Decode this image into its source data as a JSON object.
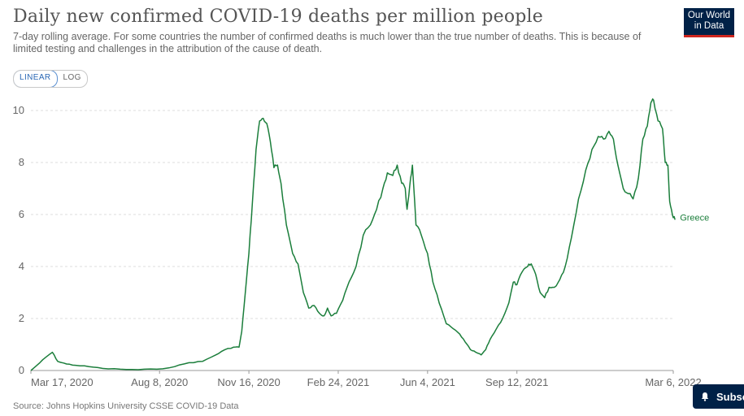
{
  "title": "Daily new confirmed COVID-19 deaths per million people",
  "subtitle": "7-day rolling average. For some countries the number of confirmed deaths is much lower than the true number of deaths. This is because of limited testing and challenges in the attribution of the cause of death.",
  "logo": {
    "line1": "Our World",
    "line2": "in Data"
  },
  "scale_toggle": {
    "linear": "LINEAR",
    "log": "LOG",
    "selected": "LINEAR"
  },
  "source": "Source: Johns Hopkins University CSSE COVID-19 Data",
  "subscribe_label": "Subsc",
  "colors": {
    "series": "#1b7e3b",
    "grid": "#dddddd",
    "logo_bg": "#002147",
    "logo_accent": "#ce261e"
  },
  "chart_data": {
    "type": "line",
    "ylim": [
      0,
      10
    ],
    "yticks": [
      0,
      2,
      4,
      6,
      8,
      10
    ],
    "xlim": [
      "2020-03-17",
      "2022-03-06"
    ],
    "xticks": [
      "Mar 17, 2020",
      "Aug 8, 2020",
      "Nov 16, 2020",
      "Feb 24, 2021",
      "Jun 4, 2021",
      "Sep 12, 2021",
      "Mar 6, 2022"
    ],
    "grid": true,
    "series": [
      {
        "name": "Greece",
        "points": [
          [
            "2020-03-17",
            0.0
          ],
          [
            "2020-03-27",
            0.3
          ],
          [
            "2020-04-06",
            0.6
          ],
          [
            "2020-04-10",
            0.7
          ],
          [
            "2020-04-16",
            0.35
          ],
          [
            "2020-04-26",
            0.25
          ],
          [
            "2020-05-06",
            0.2
          ],
          [
            "2020-05-21",
            0.15
          ],
          [
            "2020-06-05",
            0.08
          ],
          [
            "2020-06-25",
            0.05
          ],
          [
            "2020-07-15",
            0.03
          ],
          [
            "2020-08-05",
            0.05
          ],
          [
            "2020-08-25",
            0.15
          ],
          [
            "2020-09-10",
            0.3
          ],
          [
            "2020-09-25",
            0.35
          ],
          [
            "2020-10-10",
            0.6
          ],
          [
            "2020-10-20",
            0.8
          ],
          [
            "2020-10-30",
            0.9
          ],
          [
            "2020-11-05",
            0.9
          ],
          [
            "2020-11-08",
            1.5
          ],
          [
            "2020-11-12",
            3.0
          ],
          [
            "2020-11-16",
            4.5
          ],
          [
            "2020-11-20",
            6.5
          ],
          [
            "2020-11-24",
            8.5
          ],
          [
            "2020-11-28",
            9.6
          ],
          [
            "2020-12-02",
            9.7
          ],
          [
            "2020-12-06",
            9.5
          ],
          [
            "2020-12-10",
            8.8
          ],
          [
            "2020-12-14",
            7.8
          ],
          [
            "2020-12-18",
            7.9
          ],
          [
            "2020-12-22",
            7.2
          ],
          [
            "2020-12-28",
            5.6
          ],
          [
            "2021-01-04",
            4.5
          ],
          [
            "2021-01-10",
            4.1
          ],
          [
            "2021-01-16",
            3.0
          ],
          [
            "2021-01-22",
            2.4
          ],
          [
            "2021-01-28",
            2.5
          ],
          [
            "2021-02-03",
            2.2
          ],
          [
            "2021-02-08",
            2.1
          ],
          [
            "2021-02-12",
            2.4
          ],
          [
            "2021-02-16",
            2.1
          ],
          [
            "2021-02-22",
            2.2
          ],
          [
            "2021-03-01",
            2.7
          ],
          [
            "2021-03-08",
            3.4
          ],
          [
            "2021-03-16",
            4.0
          ],
          [
            "2021-03-24",
            5.2
          ],
          [
            "2021-04-01",
            5.6
          ],
          [
            "2021-04-08",
            6.2
          ],
          [
            "2021-04-15",
            7.0
          ],
          [
            "2021-04-20",
            7.6
          ],
          [
            "2021-04-26",
            7.5
          ],
          [
            "2021-05-01",
            7.9
          ],
          [
            "2021-05-06",
            7.2
          ],
          [
            "2021-05-10",
            7.0
          ],
          [
            "2021-05-12",
            6.2
          ],
          [
            "2021-05-15",
            7.1
          ],
          [
            "2021-05-18",
            7.9
          ],
          [
            "2021-05-22",
            5.6
          ],
          [
            "2021-05-28",
            5.2
          ],
          [
            "2021-06-04",
            4.5
          ],
          [
            "2021-06-10",
            3.4
          ],
          [
            "2021-06-17",
            2.6
          ],
          [
            "2021-06-25",
            1.8
          ],
          [
            "2021-07-03",
            1.6
          ],
          [
            "2021-07-10",
            1.4
          ],
          [
            "2021-07-16",
            1.1
          ],
          [
            "2021-07-22",
            0.8
          ],
          [
            "2021-07-28",
            0.7
          ],
          [
            "2021-08-03",
            0.6
          ],
          [
            "2021-08-08",
            0.8
          ],
          [
            "2021-08-13",
            1.2
          ],
          [
            "2021-08-20",
            1.6
          ],
          [
            "2021-08-27",
            2.0
          ],
          [
            "2021-09-03",
            2.6
          ],
          [
            "2021-09-08",
            3.4
          ],
          [
            "2021-09-12",
            3.3
          ],
          [
            "2021-09-18",
            3.8
          ],
          [
            "2021-09-24",
            4.0
          ],
          [
            "2021-09-28",
            4.1
          ],
          [
            "2021-10-03",
            3.7
          ],
          [
            "2021-10-08",
            3.0
          ],
          [
            "2021-10-13",
            2.8
          ],
          [
            "2021-10-18",
            3.2
          ],
          [
            "2021-10-24",
            3.2
          ],
          [
            "2021-10-30",
            3.5
          ],
          [
            "2021-11-05",
            4.0
          ],
          [
            "2021-11-12",
            5.1
          ],
          [
            "2021-11-20",
            6.6
          ],
          [
            "2021-11-28",
            7.7
          ],
          [
            "2021-12-05",
            8.5
          ],
          [
            "2021-12-12",
            9.0
          ],
          [
            "2021-12-18",
            8.9
          ],
          [
            "2021-12-24",
            9.2
          ],
          [
            "2021-12-29",
            8.9
          ],
          [
            "2022-01-03",
            7.9
          ],
          [
            "2022-01-09",
            7.0
          ],
          [
            "2022-01-15",
            6.8
          ],
          [
            "2022-01-20",
            6.6
          ],
          [
            "2022-01-26",
            7.4
          ],
          [
            "2022-01-31",
            8.9
          ],
          [
            "2022-02-05",
            9.4
          ],
          [
            "2022-02-09",
            10.3
          ],
          [
            "2022-02-12",
            10.4
          ],
          [
            "2022-02-17",
            9.6
          ],
          [
            "2022-02-22",
            9.3
          ],
          [
            "2022-02-25",
            8.0
          ],
          [
            "2022-02-28",
            7.9
          ],
          [
            "2022-03-02",
            6.5
          ],
          [
            "2022-03-05",
            6.0
          ],
          [
            "2022-03-08",
            5.8
          ]
        ]
      }
    ]
  }
}
